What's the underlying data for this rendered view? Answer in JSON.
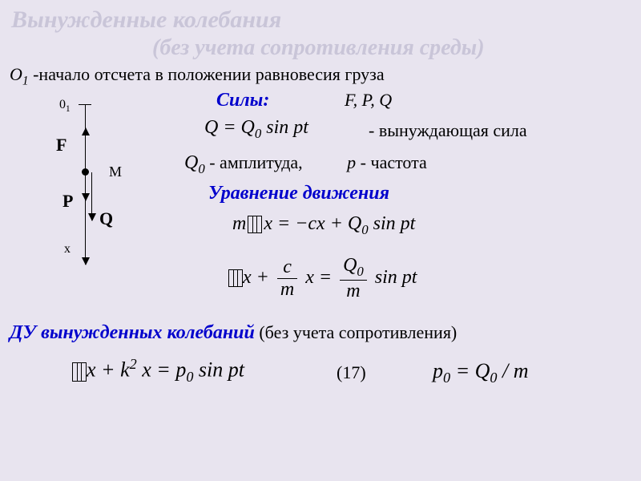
{
  "title_main": "Вынужденные колебания",
  "title_sub": "(без учета сопротивления среды)",
  "origin_prefix": "O",
  "origin_sub": "1",
  "origin_text": " -начало отсчета в положении равновесия груза",
  "forces": {
    "heading": "Силы:",
    "list": "F, P, Q",
    "eq_q": "Q = Q",
    "eq_q_sub": "0",
    "eq_q_tail": " sin pt",
    "forcing_label": "- вынуждающая сила",
    "q0": "Q",
    "q0_sub": "0",
    "amp_label": " - амплитуда,",
    "p_var": "p",
    "freq_label": " - частота"
  },
  "eq_motion_heading": "Уравнение движения",
  "eq1": {
    "lhs_m": "m",
    "lhs_x": "x",
    "rhs": " = −cx + Q",
    "rhs_sub": "0",
    "rhs_tail": " sin pt"
  },
  "eq2": {
    "x": "x",
    "plus": "+ ",
    "frac1_num": "c",
    "frac1_den": "m",
    "mid": " x = ",
    "frac2_num": "Q",
    "frac2_num_sub": "0",
    "frac2_den": "m",
    "tail": " sin pt"
  },
  "du_heading_blue": "ДУ вынужденных колебаний",
  "du_heading_rest": " (без учета  сопротивления)",
  "eq3": {
    "x": "x",
    "plus": "+ k",
    "sup": "2",
    "mid": " x = p",
    "sub": "0",
    "tail": " sin pt",
    "num": "(17)"
  },
  "eq_p0": {
    "lhs": "p",
    "lhs_sub": "0",
    "eq": " = Q",
    "rhs_sub": "0",
    "tail": " / m"
  },
  "diagram": {
    "o1": "0",
    "o1_sub": "1",
    "F": "F",
    "P": "P",
    "Q": "Q",
    "M": "M",
    "x": "x"
  },
  "colors": {
    "bg": "#e8e4ef",
    "title": "#c9c5d8",
    "heading_blue": "#0000cc",
    "text": "#000000"
  }
}
